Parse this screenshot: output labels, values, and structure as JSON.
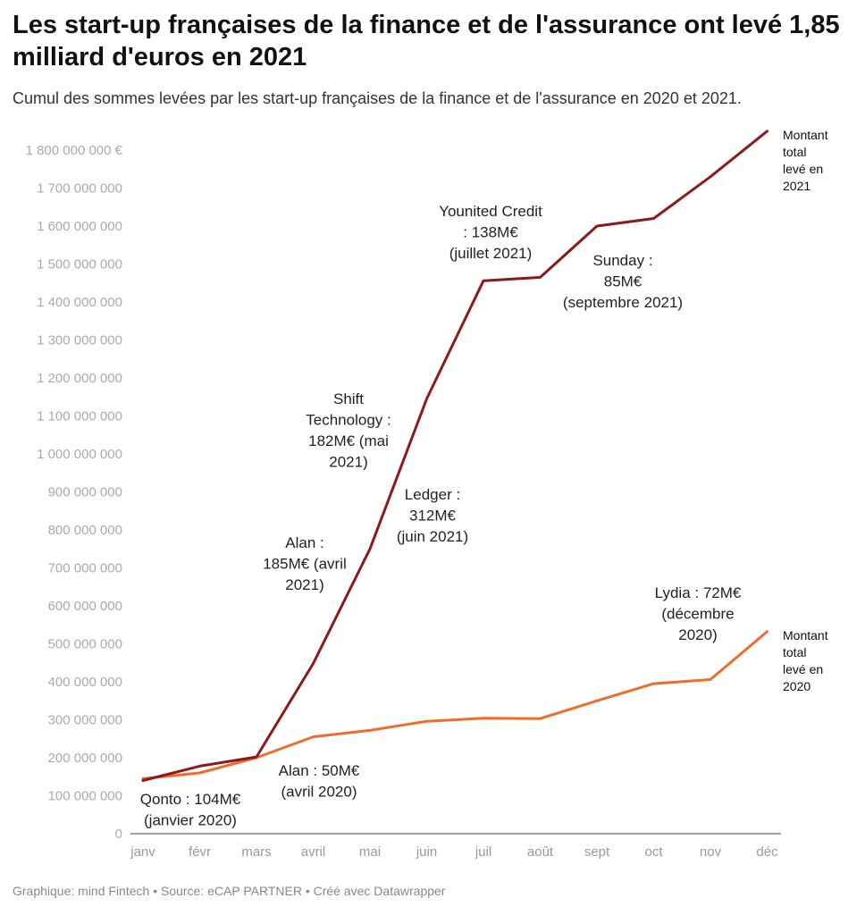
{
  "header": {
    "title": "Les start-up françaises de la finance et de l'assurance ont levé 1,85 milliard d'euros en 2021",
    "subtitle": "Cumul des sommes levées par les start-up françaises de la finance et de l'assurance en 2020 et 2021."
  },
  "footer": {
    "credit": "Graphique: mind Fintech • Source: eCAP PARTNER • Créé avec Datawrapper"
  },
  "chart_data": {
    "type": "line",
    "categories": [
      "janv",
      "févr",
      "mars",
      "avril",
      "mai",
      "juin",
      "juil",
      "août",
      "sept",
      "oct",
      "nov",
      "déc"
    ],
    "ylim": [
      0,
      1850000000
    ],
    "y_ticks": [
      {
        "value": 0,
        "label": "0"
      },
      {
        "value": 100000000,
        "label": "100 000 000"
      },
      {
        "value": 200000000,
        "label": "200 000 000"
      },
      {
        "value": 300000000,
        "label": "300 000 000"
      },
      {
        "value": 400000000,
        "label": "400 000 000"
      },
      {
        "value": 500000000,
        "label": "500 000 000"
      },
      {
        "value": 600000000,
        "label": "600 000 000"
      },
      {
        "value": 700000000,
        "label": "700 000 000"
      },
      {
        "value": 800000000,
        "label": "800 000 000"
      },
      {
        "value": 900000000,
        "label": "900 000 000"
      },
      {
        "value": 1000000000,
        "label": "1 000 000 000"
      },
      {
        "value": 1100000000,
        "label": "1 100 000 000"
      },
      {
        "value": 1200000000,
        "label": "1 200 000 000"
      },
      {
        "value": 1300000000,
        "label": "1 300 000 000"
      },
      {
        "value": 1400000000,
        "label": "1 400 000 000"
      },
      {
        "value": 1500000000,
        "label": "1 500 000 000"
      },
      {
        "value": 1600000000,
        "label": "1 600 000 000"
      },
      {
        "value": 1700000000,
        "label": "1 700 000 000"
      },
      {
        "value": 1800000000,
        "label": "1 800 000 000 €"
      }
    ],
    "grid": false,
    "series": [
      {
        "key": "2021",
        "color": "#8b1a1a",
        "values": [
          140000000,
          178000000,
          202000000,
          448000000,
          750000000,
          1145000000,
          1456000000,
          1465000000,
          1600000000,
          1620000000,
          1730000000,
          1850000000
        ],
        "end_label": [
          "Montant",
          "total",
          "levé en",
          "2021"
        ]
      },
      {
        "key": "2020",
        "color": "#ef6c2f",
        "values": [
          145000000,
          160000000,
          200000000,
          255000000,
          272000000,
          296000000,
          304000000,
          303000000,
          350000000,
          395000000,
          406000000,
          532000000
        ],
        "end_label": [
          "Montant",
          "total",
          "levé en",
          "2020"
        ]
      }
    ],
    "annotations": [
      {
        "lines": [
          "Qonto : 104M€",
          "(janvier 2020)"
        ]
      },
      {
        "lines": [
          "Alan : 50M€",
          "(avril 2020)"
        ]
      },
      {
        "lines": [
          "Alan :",
          "185M€ (avril",
          "2021)"
        ]
      },
      {
        "lines": [
          "Shift",
          "Technology :",
          "182M€ (mai",
          "2021)"
        ]
      },
      {
        "lines": [
          "Ledger :",
          "312M€",
          "(juin 2021)"
        ]
      },
      {
        "lines": [
          "Younited Credit",
          ": 138M€",
          "(juillet 2021)"
        ]
      },
      {
        "lines": [
          "Sunday :",
          "85M€",
          "(septembre 2021)"
        ]
      },
      {
        "lines": [
          "Lydia : 72M€",
          "(décembre",
          "2020)"
        ]
      }
    ]
  }
}
